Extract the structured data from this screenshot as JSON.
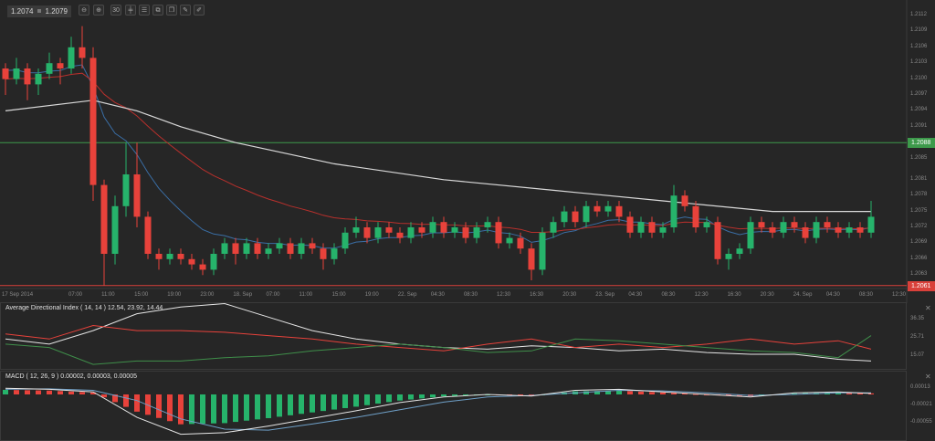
{
  "toolbar": {
    "bid": "1.2074",
    "ask": "1.2079",
    "buttons": [
      {
        "name": "zoom-out-icon",
        "glyph": "⊖"
      },
      {
        "name": "zoom-in-icon",
        "glyph": "⊕"
      },
      {
        "name": "timeframe-button",
        "glyph": "30"
      },
      {
        "name": "candlestick-icon",
        "glyph": "╪"
      },
      {
        "name": "indicators-icon",
        "glyph": "☰"
      },
      {
        "name": "chart-template-icon",
        "glyph": "⧉"
      },
      {
        "name": "layers-icon",
        "glyph": "❐"
      },
      {
        "name": "edit-icon",
        "glyph": "✎"
      },
      {
        "name": "draw-icon",
        "glyph": "✐"
      }
    ]
  },
  "colors": {
    "bull": "#26b36b",
    "bear": "#e8423b",
    "ma_white": "#d9d9d9",
    "ma_red": "#b8302c",
    "ma_blue": "#3a6ea5",
    "level_green": "#3d9a4b",
    "level_red": "#d9403a"
  },
  "price_axis": {
    "ticks": [
      "1.2112",
      "1.2109",
      "1.2106",
      "1.2103",
      "1.2100",
      "1.2097",
      "1.2094",
      "1.2091",
      "1.2085",
      "1.2081",
      "1.2078",
      "1.2075",
      "1.2072",
      "1.2069",
      "1.2066",
      "1.2063"
    ],
    "tick_values": [
      1.2112,
      1.2109,
      1.2106,
      1.2103,
      1.21,
      1.2097,
      1.2094,
      1.2091,
      1.2085,
      1.2081,
      1.2078,
      1.2075,
      1.2072,
      1.2069,
      1.2066,
      1.2063
    ],
    "level_high": {
      "label": "1.2088",
      "value": 1.2088
    },
    "level_low": {
      "label": "1.2061",
      "value": 1.2061
    }
  },
  "time_axis": [
    "17 Sep 2014",
    "07:00",
    "11:00",
    "15:00",
    "19:00",
    "23:00",
    "18. Sep",
    "07:00",
    "11:00",
    "15:00",
    "19:00",
    "22. Sep",
    "04:30",
    "08:30",
    "12:30",
    "16:30",
    "20:30",
    "23. Sep",
    "04:30",
    "08:30",
    "12:30",
    "16:30",
    "20:30",
    "24. Sep",
    "04:30",
    "08:30",
    "12:30"
  ],
  "candles": [
    [
      1.2102,
      1.2103,
      1.2097,
      1.21
    ],
    [
      1.21,
      1.2104,
      1.2099,
      1.2102
    ],
    [
      1.2102,
      1.2103,
      1.2096,
      1.2099
    ],
    [
      1.2099,
      1.2102,
      1.2097,
      1.2101
    ],
    [
      1.2101,
      1.2105,
      1.21,
      1.2103
    ],
    [
      1.2103,
      1.2104,
      1.2099,
      1.2102
    ],
    [
      1.2102,
      1.2108,
      1.2101,
      1.2106
    ],
    [
      1.2106,
      1.211,
      1.2102,
      1.2104
    ],
    [
      1.2104,
      1.2106,
      1.2077,
      1.208
    ],
    [
      1.208,
      1.2081,
      1.2061,
      1.2067
    ],
    [
      1.2067,
      1.2078,
      1.2065,
      1.2076
    ],
    [
      1.2076,
      1.2088,
      1.2074,
      1.2082
    ],
    [
      1.2082,
      1.2088,
      1.2072,
      1.2074
    ],
    [
      1.2074,
      1.2075,
      1.2066,
      1.2067
    ],
    [
      1.2067,
      1.2068,
      1.2064,
      1.2066
    ],
    [
      1.2066,
      1.2068,
      1.2065,
      1.2067
    ],
    [
      1.2067,
      1.2068,
      1.2065,
      1.2066
    ],
    [
      1.2066,
      1.2067,
      1.2064,
      1.2065
    ],
    [
      1.2065,
      1.2066,
      1.2063,
      1.2064
    ],
    [
      1.2064,
      1.2068,
      1.2063,
      1.2067
    ],
    [
      1.2067,
      1.207,
      1.2066,
      1.2069
    ],
    [
      1.2069,
      1.207,
      1.2065,
      1.2067
    ],
    [
      1.2067,
      1.207,
      1.2066,
      1.2069
    ],
    [
      1.2069,
      1.207,
      1.2066,
      1.2067
    ],
    [
      1.2067,
      1.2069,
      1.2066,
      1.2068
    ],
    [
      1.2068,
      1.207,
      1.2067,
      1.2069
    ],
    [
      1.2069,
      1.207,
      1.2066,
      1.2067
    ],
    [
      1.2067,
      1.207,
      1.2066,
      1.2069
    ],
    [
      1.2069,
      1.207,
      1.2067,
      1.2068
    ],
    [
      1.2068,
      1.2069,
      1.2064,
      1.2066
    ],
    [
      1.2066,
      1.2069,
      1.2065,
      1.2068
    ],
    [
      1.2068,
      1.2072,
      1.2067,
      1.2071
    ],
    [
      1.2071,
      1.2074,
      1.207,
      1.2072
    ],
    [
      1.2072,
      1.2073,
      1.2069,
      1.207
    ],
    [
      1.207,
      1.2073,
      1.2069,
      1.2072
    ],
    [
      1.2072,
      1.2073,
      1.207,
      1.2071
    ],
    [
      1.2071,
      1.2072,
      1.2069,
      1.207
    ],
    [
      1.207,
      1.2073,
      1.2069,
      1.2072
    ],
    [
      1.2072,
      1.2073,
      1.207,
      1.2071
    ],
    [
      1.2071,
      1.2074,
      1.207,
      1.2073
    ],
    [
      1.2073,
      1.2074,
      1.207,
      1.2071
    ],
    [
      1.2071,
      1.2073,
      1.207,
      1.2072
    ],
    [
      1.2072,
      1.2073,
      1.2069,
      1.207
    ],
    [
      1.207,
      1.2073,
      1.2069,
      1.2072
    ],
    [
      1.2072,
      1.2074,
      1.2071,
      1.2073
    ],
    [
      1.2073,
      1.2074,
      1.2068,
      1.2069
    ],
    [
      1.2069,
      1.2071,
      1.2068,
      1.207
    ],
    [
      1.207,
      1.2071,
      1.2067,
      1.2068
    ],
    [
      1.2068,
      1.2069,
      1.2062,
      1.2064
    ],
    [
      1.2064,
      1.2072,
      1.2063,
      1.2071
    ],
    [
      1.2071,
      1.2074,
      1.207,
      1.2073
    ],
    [
      1.2073,
      1.2076,
      1.2072,
      1.2075
    ],
    [
      1.2075,
      1.2076,
      1.2072,
      1.2073
    ],
    [
      1.2073,
      1.2077,
      1.2072,
      1.2076
    ],
    [
      1.2076,
      1.2077,
      1.2074,
      1.2075
    ],
    [
      1.2075,
      1.2077,
      1.2074,
      1.2076
    ],
    [
      1.2076,
      1.2077,
      1.2073,
      1.2074
    ],
    [
      1.2074,
      1.2075,
      1.207,
      1.2071
    ],
    [
      1.2071,
      1.2074,
      1.207,
      1.2073
    ],
    [
      1.2073,
      1.2074,
      1.207,
      1.2071
    ],
    [
      1.2071,
      1.2073,
      1.207,
      1.2072
    ],
    [
      1.2072,
      1.208,
      1.2071,
      1.2078
    ],
    [
      1.2078,
      1.2079,
      1.2075,
      1.2076
    ],
    [
      1.2076,
      1.2077,
      1.2071,
      1.2072
    ],
    [
      1.2072,
      1.2074,
      1.2071,
      1.2073
    ],
    [
      1.2073,
      1.2074,
      1.2065,
      1.2066
    ],
    [
      1.2066,
      1.2068,
      1.2064,
      1.2067
    ],
    [
      1.2067,
      1.2069,
      1.2066,
      1.2068
    ],
    [
      1.2068,
      1.2074,
      1.2067,
      1.2073
    ],
    [
      1.2073,
      1.2074,
      1.2071,
      1.2072
    ],
    [
      1.2072,
      1.2073,
      1.207,
      1.2071
    ],
    [
      1.2071,
      1.2074,
      1.207,
      1.2073
    ],
    [
      1.2073,
      1.2074,
      1.2071,
      1.2072
    ],
    [
      1.2072,
      1.2073,
      1.2069,
      1.207
    ],
    [
      1.207,
      1.2074,
      1.2069,
      1.2073
    ],
    [
      1.2073,
      1.2074,
      1.2071,
      1.2072
    ],
    [
      1.2072,
      1.2073,
      1.207,
      1.2071
    ],
    [
      1.2071,
      1.2073,
      1.207,
      1.2072
    ],
    [
      1.2072,
      1.2073,
      1.207,
      1.2071
    ],
    [
      1.2071,
      1.2077,
      1.207,
      1.2074
    ]
  ],
  "ma_white": [
    [
      0,
      1.2094
    ],
    [
      8,
      1.2096
    ],
    [
      12,
      1.2094
    ],
    [
      16,
      1.2091
    ],
    [
      21,
      1.2088
    ],
    [
      30,
      1.2084
    ],
    [
      40,
      1.2081
    ],
    [
      50,
      1.2079
    ],
    [
      60,
      1.2077
    ],
    [
      70,
      1.2075
    ],
    [
      79,
      1.2075
    ]
  ],
  "adx": {
    "title": "Average Directional Index ( 14, 14 ) 12.54, 23.92, 14.44",
    "ticks": [
      "36.35",
      "25.71",
      "15.07"
    ],
    "tick_values": [
      36.35,
      25.71,
      15.07
    ],
    "adx_white": [
      25,
      22,
      30,
      40,
      44,
      46,
      38,
      30,
      25,
      22,
      20,
      19,
      21,
      20,
      18,
      19,
      17,
      16,
      16,
      13,
      12
    ],
    "di_minus_red": [
      28,
      25,
      33,
      30,
      30,
      29,
      27,
      25,
      22,
      20,
      18,
      22,
      25,
      20,
      22,
      20,
      22,
      25,
      22,
      24,
      19
    ],
    "di_plus_green": [
      22,
      20,
      10,
      12,
      12,
      14,
      15,
      18,
      20,
      22,
      20,
      17,
      18,
      25,
      24,
      22,
      20,
      18,
      17,
      14,
      27
    ]
  },
  "macd": {
    "title": "MACD ( 12, 26, 9 ) 0.00002, 0.00003, 0.00005",
    "ticks": [
      "0.00013",
      "-0.00021",
      "-0.00055"
    ],
    "tick_values": [
      0.00013,
      -0.00021,
      -0.00055
    ],
    "macd_white": [
      0.00012,
      0.0001,
      5e-05,
      -0.00045,
      -0.00078,
      -0.00075,
      -0.00062,
      -0.00047,
      -0.00032,
      -0.00016,
      -5e-05,
      0.0,
      -3e-05,
      8e-05,
      0.0001,
      5e-05,
      0.0,
      -5e-05,
      3e-05,
      5e-05,
      2e-05
    ],
    "signal_blue": [
      0.0001,
      0.00011,
      8e-05,
      -0.00012,
      -0.00048,
      -0.00068,
      -0.0007,
      -0.00058,
      -0.00045,
      -0.0003,
      -0.00015,
      -5e-05,
      -2e-05,
      3e-05,
      8e-05,
      7e-05,
      3e-05,
      -2e-05,
      0.0,
      3e-05,
      3e-05
    ]
  }
}
